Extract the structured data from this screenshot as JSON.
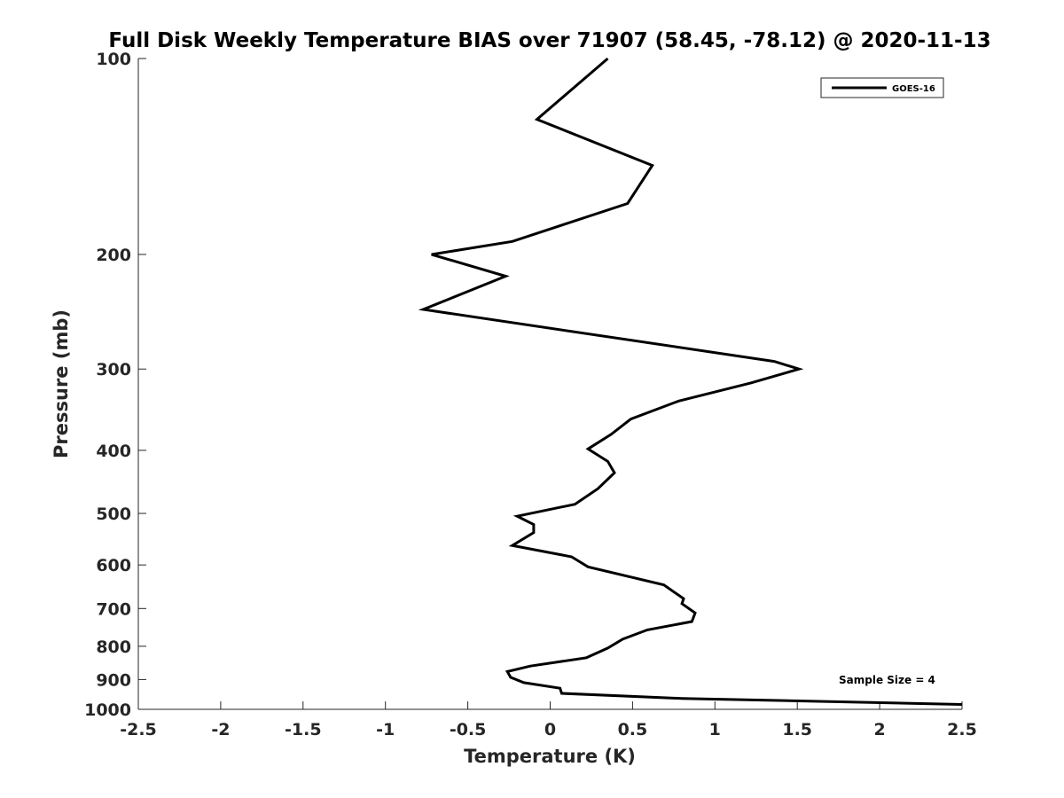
{
  "chart_data": {
    "type": "line",
    "title": "Full Disk Weekly Temperature BIAS over 71907 (58.45, -78.12) @ 2020-11-13",
    "xlabel": "Temperature (K)",
    "ylabel": "Pressure (mb)",
    "xlim": [
      -2.5,
      2.5
    ],
    "ylim": [
      100,
      1000
    ],
    "y_scale": "log",
    "y_direction": "reversed",
    "xticks": [
      -2.5,
      -2,
      -1.5,
      -1,
      -0.5,
      0,
      0.5,
      1,
      1.5,
      2,
      2.5
    ],
    "xtick_labels": [
      "-2.5",
      "-2",
      "-1.5",
      "-1",
      "-0.5",
      "0",
      "0.5",
      "1",
      "1.5",
      "2",
      "2.5"
    ],
    "yticks": [
      100,
      200,
      300,
      400,
      500,
      600,
      700,
      800,
      900,
      1000
    ],
    "ytick_labels": [
      "100",
      "200",
      "300",
      "400",
      "500",
      "600",
      "700",
      "800",
      "900",
      "1000"
    ],
    "grid": false,
    "legend_position": "top-right",
    "annotation": "Sample Size = 4",
    "series": [
      {
        "name": "GOES-16",
        "color": "#000000",
        "x": [
          0.35,
          -0.08,
          0.62,
          0.47,
          -0.23,
          -0.72,
          -0.27,
          -0.77,
          1.36,
          1.51,
          1.22,
          0.78,
          0.49,
          0.37,
          0.23,
          0.35,
          0.39,
          0.29,
          0.15,
          -0.2,
          -0.1,
          -0.1,
          -0.23,
          0.13,
          0.23,
          0.69,
          0.81,
          0.8,
          0.88,
          0.86,
          0.59,
          0.44,
          0.35,
          0.22,
          -0.12,
          -0.26,
          -0.24,
          -0.16,
          0.06,
          0.07,
          0.8,
          2.5
        ],
        "y": [
          100,
          124,
          146,
          167,
          191,
          200,
          216,
          243,
          292,
          300,
          315,
          336,
          358,
          378,
          398,
          416,
          433,
          458,
          484,
          505,
          520,
          535,
          560,
          583,
          604,
          644,
          676,
          688,
          711,
          733,
          755,
          780,
          805,
          833,
          858,
          875,
          893,
          910,
          928,
          945,
          962,
          983
        ]
      }
    ]
  }
}
